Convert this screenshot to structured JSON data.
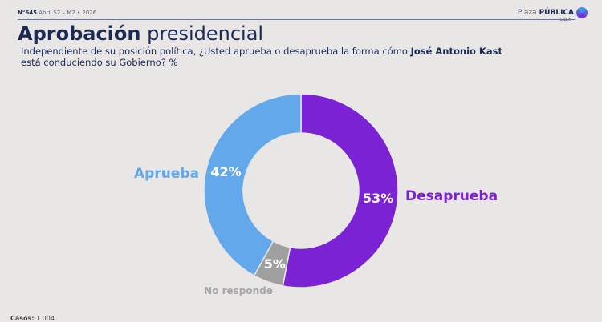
{
  "header": {
    "issue": "N°645",
    "period": "Abril S2 – M2 • 2026",
    "brand_light": "Plaza",
    "brand_bold": "PÚBLICA",
    "brand_sub": "CADEM"
  },
  "title": {
    "bold": "Aprobación",
    "light": "presidencial"
  },
  "question": {
    "pre": "Independiente de su posición política, ¿Usted aprueba o desaprueba la forma cómo ",
    "name": "José Antonio Kast",
    "post": " está conduciendo su Gobierno? %"
  },
  "footer": {
    "label": "Casos:",
    "value": "1.004"
  },
  "chart_data": {
    "type": "pie",
    "donut": true,
    "title": "Aprobación presidencial",
    "slices": [
      {
        "name": "Desaprueba",
        "value": 53,
        "label": "53%",
        "color": "#7b22d4"
      },
      {
        "name": "No responde",
        "value": 5,
        "label": "5%",
        "color": "#a09fa0"
      },
      {
        "name": "Aprueba",
        "value": 42,
        "label": "42%",
        "color": "#62a8ea"
      }
    ]
  }
}
